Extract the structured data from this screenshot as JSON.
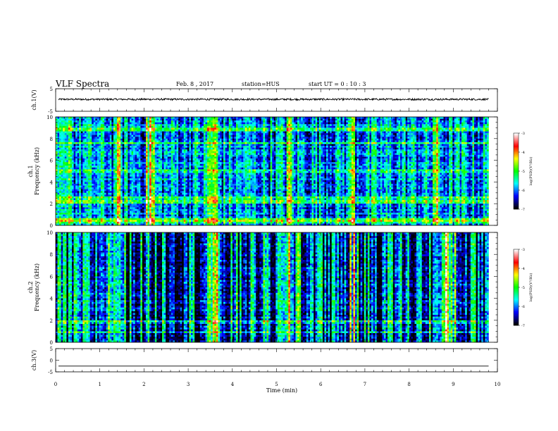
{
  "header": {
    "title": "VLF Spectra",
    "date": "Feb. 8 , 2017",
    "station": "station=HUS",
    "start_ut": "start UT =  0 : 10 : 3"
  },
  "colors": {
    "waveform": "#000000",
    "colormap": [
      "#000000",
      "#0000ff",
      "#00ffff",
      "#00ff00",
      "#ffff00",
      "#ff0000",
      "#ffffff"
    ]
  },
  "chart_data": [
    {
      "type": "line",
      "panel": "ch1-waveform",
      "ylabel": "ch.1(V)",
      "ylim": [
        -5,
        5
      ],
      "yticks": [
        "5",
        "-5"
      ],
      "xlim": [
        0,
        10
      ],
      "series": [
        {
          "baseline": 0.3,
          "amplitude": 0.4
        }
      ]
    },
    {
      "type": "heatmap",
      "panel": "ch1-spectrogram",
      "ylabel": "ch.1 Frequency (kHz)",
      "ylim": [
        0,
        10
      ],
      "yticks": [
        "0",
        "2",
        "4",
        "6",
        "8",
        "10"
      ],
      "xlim": [
        0,
        9.8
      ],
      "colorbar": {
        "label": "log(PSD)(V²/Hz)",
        "range": [
          -7,
          -3
        ],
        "ticks": [
          "-3",
          "-4",
          "-5",
          "-6",
          "-7"
        ]
      },
      "enhanced_times_min": [
        0.3,
        1.4,
        2.1,
        2.2,
        3.5,
        3.6,
        5.3,
        6.7,
        8.6
      ],
      "enhanced_freqs_khz": [
        0.3,
        0.5,
        2.2,
        2.5,
        5.0,
        7.6,
        8.8
      ]
    },
    {
      "type": "heatmap",
      "panel": "ch2-spectrogram",
      "ylabel": "ch.2 Frequency (kHz)",
      "ylim": [
        0,
        10
      ],
      "yticks": [
        "0",
        "2",
        "4",
        "6",
        "8",
        "10"
      ],
      "xlim": [
        0,
        9.8
      ],
      "colorbar": {
        "label": "log(PSD)(V²/Hz)",
        "range": [
          -7,
          -3
        ],
        "ticks": [
          "-3",
          "-4",
          "-5",
          "-6",
          "-7"
        ]
      },
      "enhanced_times_min": [
        1.2,
        1.4,
        3.5,
        3.6,
        5.3,
        5.5,
        6.7,
        8.8,
        8.9,
        9.0
      ],
      "enhanced_freqs_khz": [
        1.8,
        0.9
      ]
    },
    {
      "type": "line",
      "panel": "ch3-waveform",
      "ylabel": "ch.3(V)",
      "ylim": [
        -5,
        5
      ],
      "yticks": [
        "5",
        "0",
        "-5"
      ],
      "xlim": [
        0,
        10
      ],
      "series": [
        {
          "baseline": -2.5,
          "amplitude": 0
        }
      ]
    }
  ],
  "xaxis": {
    "label": "Time (min)",
    "ticks": [
      "0",
      "1",
      "2",
      "3",
      "4",
      "5",
      "6",
      "7",
      "8",
      "9",
      "10"
    ]
  }
}
